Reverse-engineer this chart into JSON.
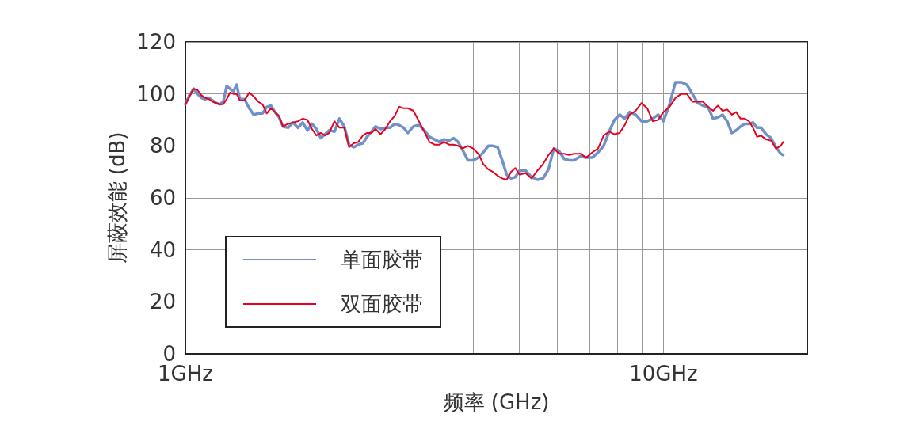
{
  "chart_data": {
    "type": "line",
    "xlabel": "频率 (GHz)",
    "ylabel": "屏蔽效能 (dB)",
    "log": "x",
    "grid": true,
    "legend": "bottom left",
    "marker": "none",
    "line_style": "solid",
    "xlim": [
      1,
      20
    ],
    "xticks": [
      {
        "value": 1,
        "label": "1GHz"
      },
      {
        "value": 3,
        "label": null
      },
      {
        "value": 4,
        "label": null
      },
      {
        "value": 5,
        "label": null
      },
      {
        "value": 6,
        "label": null
      },
      {
        "value": 7,
        "label": null
      },
      {
        "value": 8,
        "label": null
      },
      {
        "value": 9,
        "label": null
      },
      {
        "value": 10,
        "label": "10GHz"
      }
    ],
    "ylim": [
      0,
      120
    ],
    "yticks": [
      0,
      20,
      40,
      60,
      80,
      100,
      120
    ],
    "x": [
      1.0,
      1.02,
      1.04,
      1.06,
      1.08,
      1.1,
      1.12,
      1.14,
      1.16,
      1.18,
      1.2,
      1.22,
      1.24,
      1.26,
      1.28,
      1.3,
      1.33,
      1.36,
      1.39,
      1.42,
      1.45,
      1.48,
      1.51,
      1.54,
      1.57,
      1.6,
      1.64,
      1.68,
      1.72,
      1.76,
      1.8,
      1.84,
      1.88,
      1.92,
      1.96,
      2.0,
      2.05,
      2.1,
      2.15,
      2.2,
      2.25,
      2.3,
      2.35,
      2.4,
      2.45,
      2.5,
      2.56,
      2.62,
      2.68,
      2.74,
      2.8,
      2.86,
      2.92,
      3.0,
      3.08,
      3.16,
      3.24,
      3.32,
      3.4,
      3.48,
      3.56,
      3.64,
      3.72,
      3.8,
      3.9,
      4.0,
      4.1,
      4.2,
      4.3,
      4.4,
      4.5,
      4.6,
      4.7,
      4.8,
      4.9,
      5.0,
      5.15,
      5.3,
      5.45,
      5.6,
      5.75,
      5.9,
      6.05,
      6.2,
      6.35,
      6.5,
      6.7,
      6.9,
      7.1,
      7.3,
      7.5,
      7.7,
      7.9,
      8.1,
      8.3,
      8.5,
      8.75,
      9.0,
      9.25,
      9.5,
      9.75,
      10.0,
      10.3,
      10.6,
      10.9,
      11.2,
      11.5,
      11.8,
      12.1,
      12.4,
      12.7,
      13.0,
      13.3,
      13.6,
      13.9,
      14.2,
      14.5,
      14.8,
      15.1,
      15.4,
      15.7,
      16.0,
      16.4,
      16.8,
      17.2,
      17.6,
      17.8
    ],
    "series": [
      {
        "name": "单面胶带",
        "color": "#7090c8",
        "values": [
          96,
          99.5,
          102,
          100,
          98.5,
          98,
          98.5,
          97.5,
          96.5,
          96,
          97,
          103,
          102,
          101,
          103.5,
          98,
          98,
          94.5,
          92,
          92.5,
          92.5,
          95,
          95.5,
          93,
          91,
          87.5,
          87,
          89,
          87,
          89,
          86,
          88.5,
          86.5,
          83,
          84.5,
          86,
          85.5,
          90.5,
          87.5,
          80.5,
          79.5,
          80.5,
          81,
          83.5,
          85.5,
          87.5,
          86.5,
          87,
          87,
          88.5,
          88,
          87,
          85,
          87.5,
          88,
          86,
          83.5,
          82.5,
          81.5,
          82.5,
          82,
          83,
          81.5,
          78.5,
          74.5,
          74.5,
          75.5,
          77.5,
          80,
          80,
          79.5,
          74.5,
          69,
          67.5,
          68,
          70.5,
          70.5,
          68,
          67,
          67.5,
          71,
          79,
          78,
          75,
          74.5,
          74.5,
          76,
          75.5,
          75.5,
          77.5,
          80,
          85.5,
          90,
          92,
          90.5,
          93,
          92,
          89.5,
          89.5,
          90.5,
          92,
          89.5,
          96,
          104.5,
          104.5,
          103.5,
          100,
          96.5,
          95.5,
          95,
          90.5,
          91,
          92,
          89.5,
          85,
          86,
          87.5,
          88.5,
          88.5,
          89,
          87,
          87,
          84.5,
          83,
          79.5,
          77,
          76.5
        ]
      },
      {
        "name": "双面胶带",
        "color": "#e8001c",
        "values": [
          96,
          99,
          102,
          101.5,
          99.5,
          98.5,
          98,
          97,
          96.5,
          96,
          96,
          98,
          100.5,
          100,
          100,
          97.5,
          97.5,
          100.5,
          99,
          97,
          96,
          92.5,
          94.5,
          93,
          91.5,
          87.5,
          88.5,
          89,
          89.5,
          90.5,
          90,
          86.5,
          84,
          85,
          84,
          85,
          89.5,
          87,
          87,
          79.5,
          81,
          81.5,
          84,
          85,
          85,
          86.5,
          84.5,
          86.5,
          89.5,
          91.5,
          95,
          94.5,
          94.5,
          93.5,
          89.5,
          85.5,
          81.5,
          80.5,
          80.5,
          81.5,
          80.5,
          80.5,
          80,
          79,
          80,
          79,
          77,
          73,
          71,
          70,
          68.5,
          67.5,
          67,
          70,
          71.5,
          69,
          69.5,
          67.5,
          70.5,
          73,
          76.5,
          79,
          77,
          77,
          76.5,
          77,
          77,
          75.5,
          77.5,
          79,
          84,
          85.5,
          84.5,
          85,
          88,
          92,
          93.5,
          96.5,
          94.5,
          89.5,
          90,
          93,
          95,
          98.5,
          100,
          100,
          97,
          97,
          97,
          95,
          93.5,
          95.5,
          93.5,
          94,
          92,
          93,
          90.5,
          90.5,
          89.5,
          87,
          83.5,
          84,
          82.5,
          82,
          79,
          80,
          81.5
        ]
      }
    ]
  }
}
